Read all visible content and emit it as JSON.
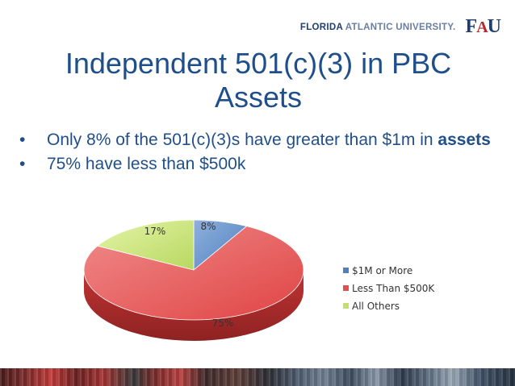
{
  "header": {
    "university_bold": "FLORIDA",
    "university_rest": "ATLANTIC UNIVERSITY.",
    "logo_text": "FAU"
  },
  "slide": {
    "title_line1": "Independent 501(c)(3) in PBC",
    "title_line2": "Assets",
    "bullet1_pre": "Only 8% of the 501(c)(3)s have greater than $1m in ",
    "bullet1_bold": "assets",
    "bullet2": "75% have less than $500k"
  },
  "chart_data": {
    "type": "pie",
    "title": "",
    "legend_position": "right",
    "slices": [
      {
        "name": "$1M or More",
        "value": 8,
        "label": "8%",
        "color": "#4f81bd"
      },
      {
        "name": "Less Than $500K",
        "value": 75,
        "label": "75%",
        "color": "#e05050"
      },
      {
        "name": "All Others",
        "value": 17,
        "label": "17%",
        "color": "#c3e06a"
      }
    ]
  }
}
